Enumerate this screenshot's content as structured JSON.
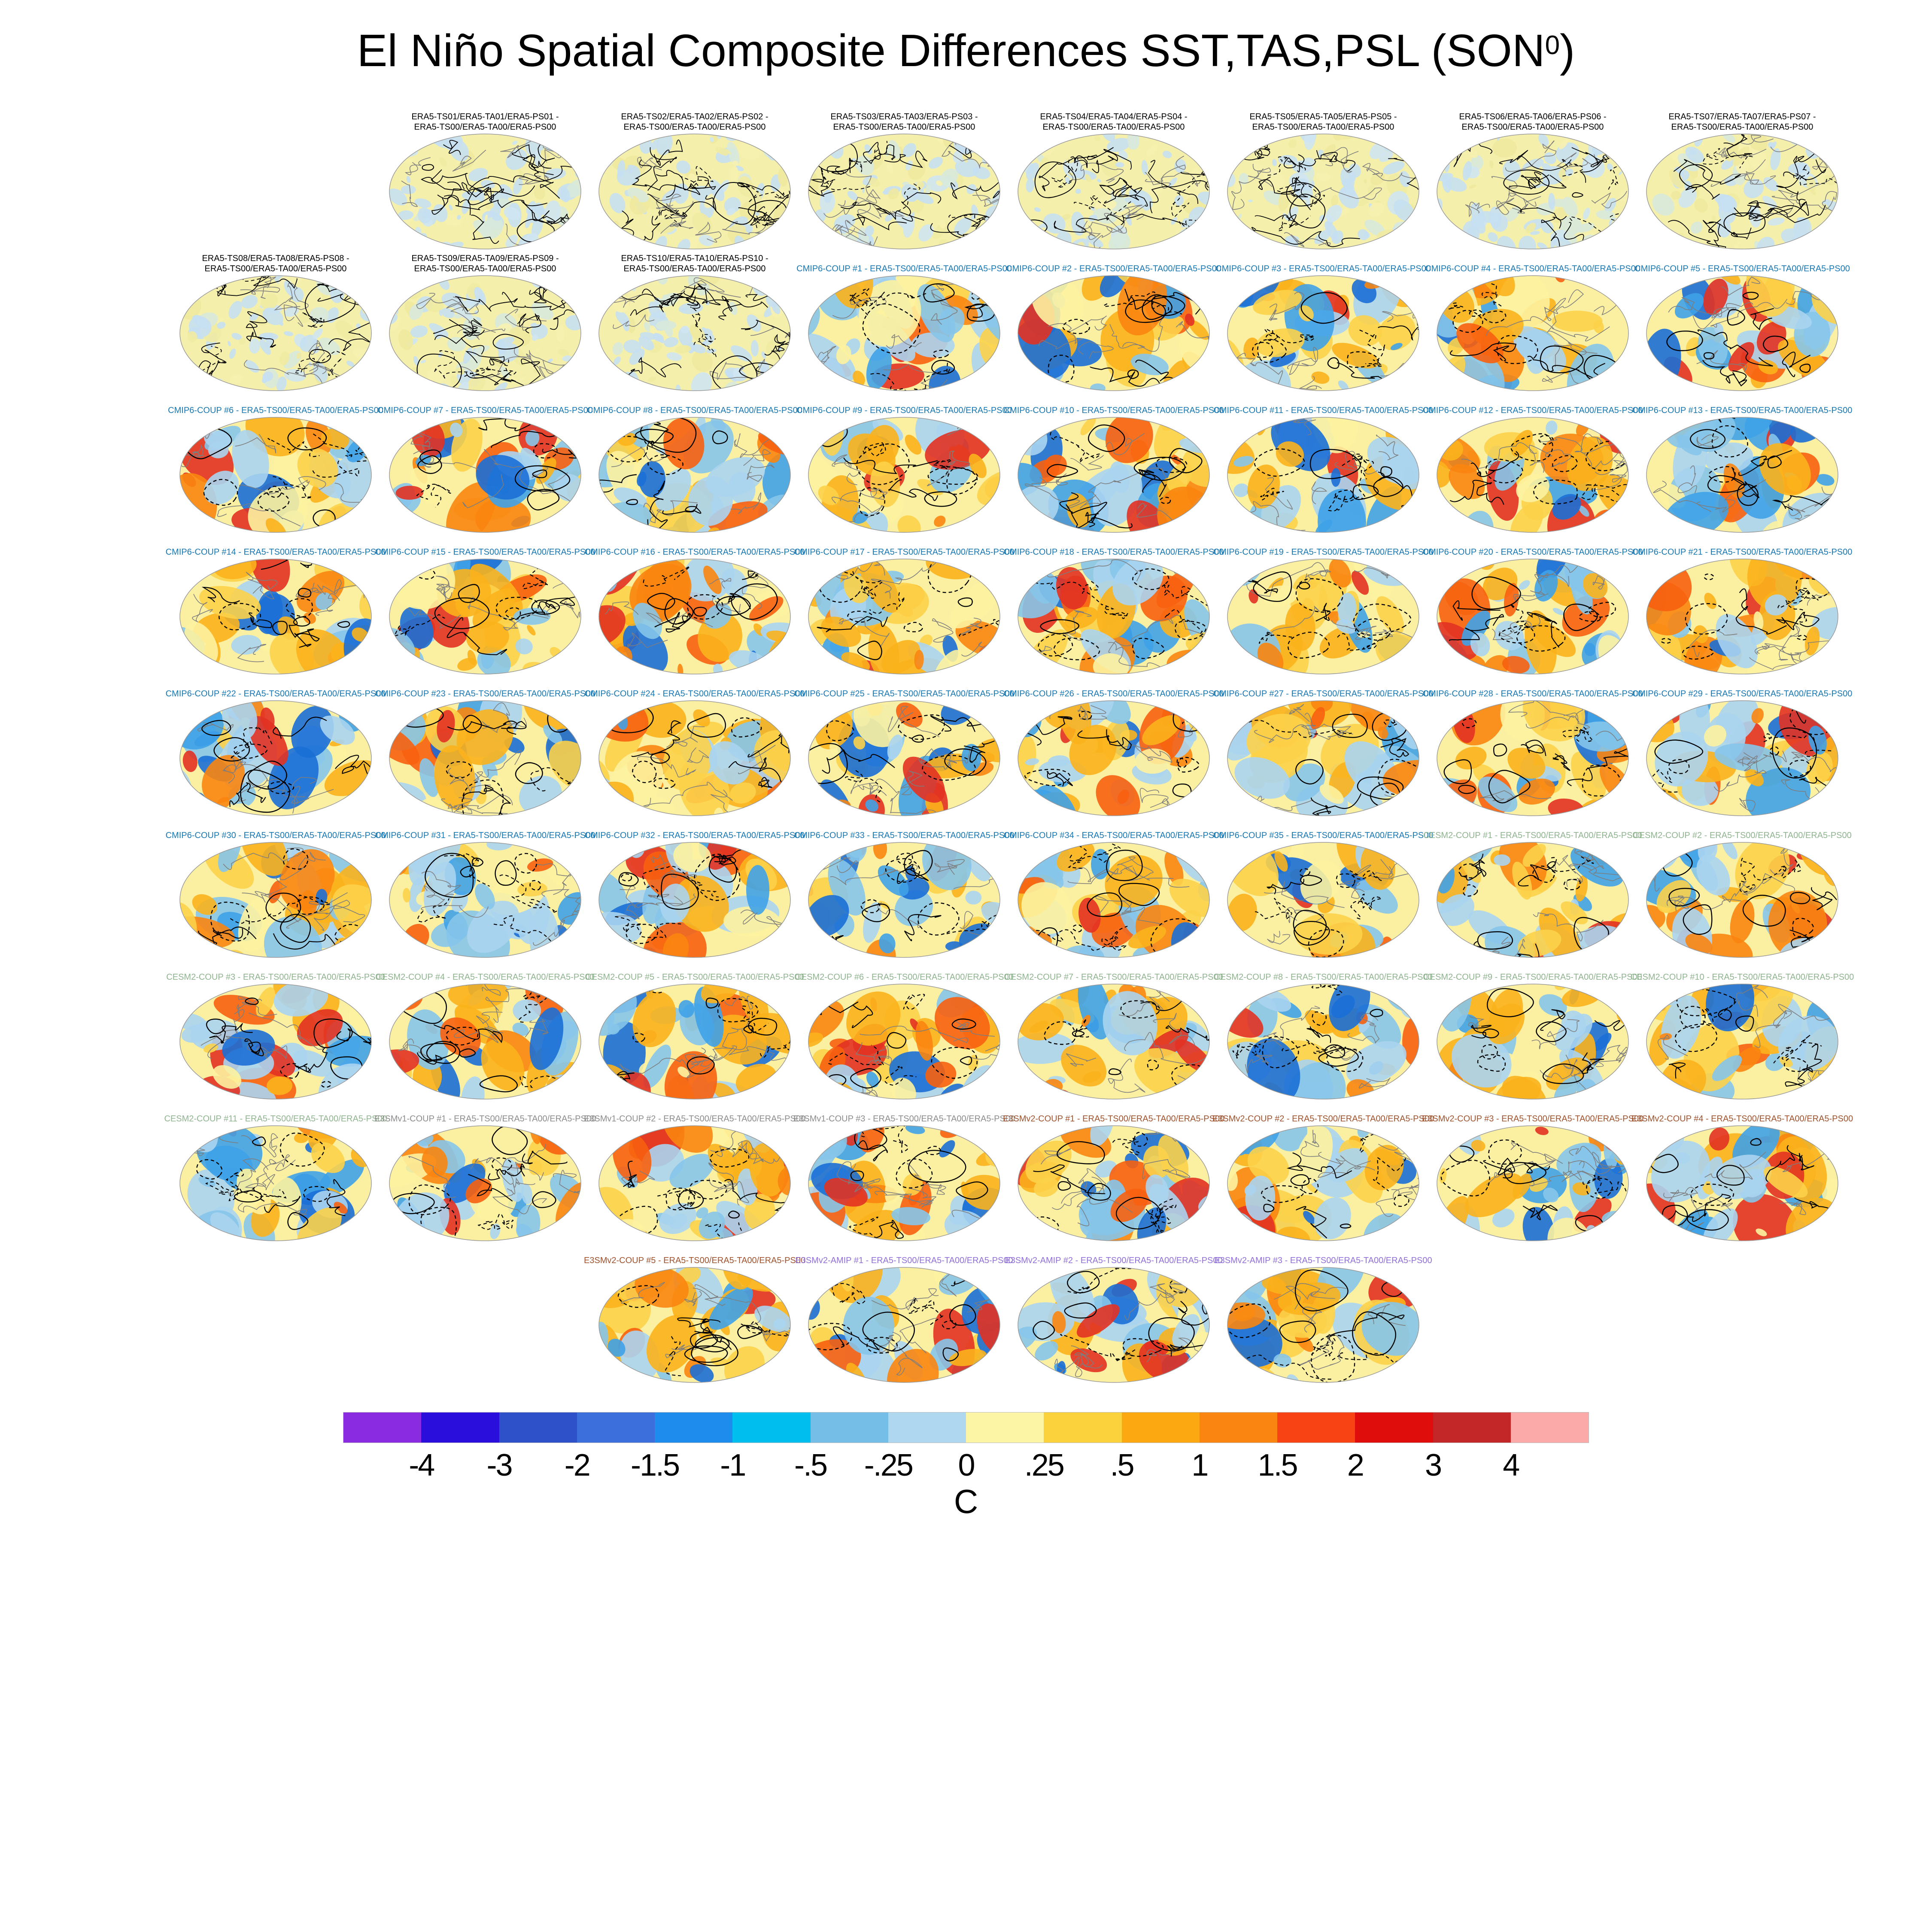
{
  "figure": {
    "background": "#ffffff"
  },
  "title": {
    "pre": "El Niño Spatial Composite Differences SST,TAS,PSL (SON",
    "sup": "0",
    "post": ")"
  },
  "groups": {
    "era5": {
      "color": "#000000",
      "map_style": "pale"
    },
    "cmip6": {
      "color": "#1878B4",
      "map_style": "vivid"
    },
    "cesm2": {
      "color": "#8FB48F",
      "map_style": "vivid"
    },
    "e3smv1": {
      "color": "#8C8C8C",
      "map_style": "vivid"
    },
    "e3smv2_coup": {
      "color": "#A0522D",
      "map_style": "vivid"
    },
    "e3smv2_amip": {
      "color": "#9070D8",
      "map_style": "vivid"
    }
  },
  "chart_data": {
    "type": "heatmap",
    "title": "El Niño Spatial Composite Differences SST,TAS,PSL (SON0)",
    "panel_kind": "global anomaly map with overlaid contours",
    "colorbar": {
      "unit": "C",
      "tick_labels": [
        "-4",
        "-3",
        "-2",
        "-1.5",
        "-1",
        "-.5",
        "-.25",
        "0",
        ".25",
        ".5",
        "1",
        "1.5",
        "2",
        "3",
        "4"
      ],
      "colors": [
        "#8A2BE2",
        "#2A0EDB",
        "#2E50C8",
        "#3C6EDC",
        "#1E8CEC",
        "#00BFEF",
        "#74BEE8",
        "#AFD7EF",
        "#FDF5A6",
        "#FBD23C",
        "#FCA811",
        "#FA8510",
        "#F84414",
        "#E00D0D",
        "#C32727",
        "#FCA9A9"
      ]
    },
    "rows": [
      {
        "offset_cols": 1,
        "centered": false,
        "panels": [
          {
            "g": "era5",
            "lines": [
              "ERA5-TS01/ERA5-TA01/ERA5-PS01 -",
              "ERA5-TS00/ERA5-TA00/ERA5-PS00"
            ]
          },
          {
            "g": "era5",
            "lines": [
              "ERA5-TS02/ERA5-TA02/ERA5-PS02 -",
              "ERA5-TS00/ERA5-TA00/ERA5-PS00"
            ]
          },
          {
            "g": "era5",
            "lines": [
              "ERA5-TS03/ERA5-TA03/ERA5-PS03 -",
              "ERA5-TS00/ERA5-TA00/ERA5-PS00"
            ]
          },
          {
            "g": "era5",
            "lines": [
              "ERA5-TS04/ERA5-TA04/ERA5-PS04 -",
              "ERA5-TS00/ERA5-TA00/ERA5-PS00"
            ]
          },
          {
            "g": "era5",
            "lines": [
              "ERA5-TS05/ERA5-TA05/ERA5-PS05 -",
              "ERA5-TS00/ERA5-TA00/ERA5-PS00"
            ]
          },
          {
            "g": "era5",
            "lines": [
              "ERA5-TS06/ERA5-TA06/ERA5-PS06 -",
              "ERA5-TS00/ERA5-TA00/ERA5-PS00"
            ]
          },
          {
            "g": "era5",
            "lines": [
              "ERA5-TS07/ERA5-TA07/ERA5-PS07 -",
              "ERA5-TS00/ERA5-TA00/ERA5-PS00"
            ]
          }
        ]
      },
      {
        "offset_cols": 0,
        "centered": false,
        "panels": [
          {
            "g": "era5",
            "lines": [
              "ERA5-TS08/ERA5-TA08/ERA5-PS08 -",
              "ERA5-TS00/ERA5-TA00/ERA5-PS00"
            ]
          },
          {
            "g": "era5",
            "lines": [
              "ERA5-TS09/ERA5-TA09/ERA5-PS09 -",
              "ERA5-TS00/ERA5-TA00/ERA5-PS00"
            ]
          },
          {
            "g": "era5",
            "lines": [
              "ERA5-TS10/ERA5-TA10/ERA5-PS10 -",
              "ERA5-TS00/ERA5-TA00/ERA5-PS00"
            ]
          },
          {
            "g": "cmip6",
            "lines": [
              "CMIP6-COUP  #1 - ERA5-TS00/ERA5-TA00/ERA5-PS00"
            ]
          },
          {
            "g": "cmip6",
            "lines": [
              "CMIP6-COUP  #2 - ERA5-TS00/ERA5-TA00/ERA5-PS00"
            ]
          },
          {
            "g": "cmip6",
            "lines": [
              "CMIP6-COUP  #3 - ERA5-TS00/ERA5-TA00/ERA5-PS00"
            ]
          },
          {
            "g": "cmip6",
            "lines": [
              "CMIP6-COUP  #4 - ERA5-TS00/ERA5-TA00/ERA5-PS00"
            ]
          },
          {
            "g": "cmip6",
            "lines": [
              "CMIP6-COUP  #5 - ERA5-TS00/ERA5-TA00/ERA5-PS00"
            ]
          }
        ]
      },
      {
        "offset_cols": 0,
        "centered": false,
        "panels": [
          {
            "g": "cmip6",
            "lines": [
              "CMIP6-COUP  #6 - ERA5-TS00/ERA5-TA00/ERA5-PS00"
            ]
          },
          {
            "g": "cmip6",
            "lines": [
              "CMIP6-COUP  #7 - ERA5-TS00/ERA5-TA00/ERA5-PS00"
            ]
          },
          {
            "g": "cmip6",
            "lines": [
              "CMIP6-COUP  #8 - ERA5-TS00/ERA5-TA00/ERA5-PS00"
            ]
          },
          {
            "g": "cmip6",
            "lines": [
              "CMIP6-COUP  #9 - ERA5-TS00/ERA5-TA00/ERA5-PS00"
            ]
          },
          {
            "g": "cmip6",
            "lines": [
              "CMIP6-COUP  #10 - ERA5-TS00/ERA5-TA00/ERA5-PS00"
            ]
          },
          {
            "g": "cmip6",
            "lines": [
              "CMIP6-COUP  #11 - ERA5-TS00/ERA5-TA00/ERA5-PS00"
            ]
          },
          {
            "g": "cmip6",
            "lines": [
              "CMIP6-COUP  #12 - ERA5-TS00/ERA5-TA00/ERA5-PS00"
            ]
          },
          {
            "g": "cmip6",
            "lines": [
              "CMIP6-COUP  #13 - ERA5-TS00/ERA5-TA00/ERA5-PS00"
            ]
          }
        ]
      },
      {
        "offset_cols": 0,
        "centered": false,
        "panels": [
          {
            "g": "cmip6",
            "lines": [
              "CMIP6-COUP  #14 - ERA5-TS00/ERA5-TA00/ERA5-PS00"
            ]
          },
          {
            "g": "cmip6",
            "lines": [
              "CMIP6-COUP  #15 - ERA5-TS00/ERA5-TA00/ERA5-PS00"
            ]
          },
          {
            "g": "cmip6",
            "lines": [
              "CMIP6-COUP  #16 - ERA5-TS00/ERA5-TA00/ERA5-PS00"
            ]
          },
          {
            "g": "cmip6",
            "lines": [
              "CMIP6-COUP  #17 - ERA5-TS00/ERA5-TA00/ERA5-PS00"
            ]
          },
          {
            "g": "cmip6",
            "lines": [
              "CMIP6-COUP  #18 - ERA5-TS00/ERA5-TA00/ERA5-PS00"
            ]
          },
          {
            "g": "cmip6",
            "lines": [
              "CMIP6-COUP  #19 - ERA5-TS00/ERA5-TA00/ERA5-PS00"
            ]
          },
          {
            "g": "cmip6",
            "lines": [
              "CMIP6-COUP  #20 - ERA5-TS00/ERA5-TA00/ERA5-PS00"
            ]
          },
          {
            "g": "cmip6",
            "lines": [
              "CMIP6-COUP  #21 - ERA5-TS00/ERA5-TA00/ERA5-PS00"
            ]
          }
        ]
      },
      {
        "offset_cols": 0,
        "centered": false,
        "panels": [
          {
            "g": "cmip6",
            "lines": [
              "CMIP6-COUP  #22 - ERA5-TS00/ERA5-TA00/ERA5-PS00"
            ]
          },
          {
            "g": "cmip6",
            "lines": [
              "CMIP6-COUP  #23 - ERA5-TS00/ERA5-TA00/ERA5-PS00"
            ]
          },
          {
            "g": "cmip6",
            "lines": [
              "CMIP6-COUP  #24 - ERA5-TS00/ERA5-TA00/ERA5-PS00"
            ]
          },
          {
            "g": "cmip6",
            "lines": [
              "CMIP6-COUP  #25 - ERA5-TS00/ERA5-TA00/ERA5-PS00"
            ]
          },
          {
            "g": "cmip6",
            "lines": [
              "CMIP6-COUP  #26 - ERA5-TS00/ERA5-TA00/ERA5-PS00"
            ]
          },
          {
            "g": "cmip6",
            "lines": [
              "CMIP6-COUP  #27 - ERA5-TS00/ERA5-TA00/ERA5-PS00"
            ]
          },
          {
            "g": "cmip6",
            "lines": [
              "CMIP6-COUP  #28 - ERA5-TS00/ERA5-TA00/ERA5-PS00"
            ]
          },
          {
            "g": "cmip6",
            "lines": [
              "CMIP6-COUP  #29 - ERA5-TS00/ERA5-TA00/ERA5-PS00"
            ]
          }
        ]
      },
      {
        "offset_cols": 0,
        "centered": false,
        "panels": [
          {
            "g": "cmip6",
            "lines": [
              "CMIP6-COUP  #30 - ERA5-TS00/ERA5-TA00/ERA5-PS00"
            ]
          },
          {
            "g": "cmip6",
            "lines": [
              "CMIP6-COUP  #31 - ERA5-TS00/ERA5-TA00/ERA5-PS00"
            ]
          },
          {
            "g": "cmip6",
            "lines": [
              "CMIP6-COUP  #32 - ERA5-TS00/ERA5-TA00/ERA5-PS00"
            ]
          },
          {
            "g": "cmip6",
            "lines": [
              "CMIP6-COUP  #33 - ERA5-TS00/ERA5-TA00/ERA5-PS00"
            ]
          },
          {
            "g": "cmip6",
            "lines": [
              "CMIP6-COUP  #34 - ERA5-TS00/ERA5-TA00/ERA5-PS00"
            ]
          },
          {
            "g": "cmip6",
            "lines": [
              "CMIP6-COUP  #35 - ERA5-TS00/ERA5-TA00/ERA5-PS00"
            ]
          },
          {
            "g": "cesm2",
            "lines": [
              "CESM2-COUP  #1 - ERA5-TS00/ERA5-TA00/ERA5-PS00"
            ]
          },
          {
            "g": "cesm2",
            "lines": [
              "CESM2-COUP  #2 - ERA5-TS00/ERA5-TA00/ERA5-PS00"
            ]
          }
        ]
      },
      {
        "offset_cols": 0,
        "centered": false,
        "panels": [
          {
            "g": "cesm2",
            "lines": [
              "CESM2-COUP  #3 - ERA5-TS00/ERA5-TA00/ERA5-PS00"
            ]
          },
          {
            "g": "cesm2",
            "lines": [
              "CESM2-COUP  #4 - ERA5-TS00/ERA5-TA00/ERA5-PS00"
            ]
          },
          {
            "g": "cesm2",
            "lines": [
              "CESM2-COUP  #5 - ERA5-TS00/ERA5-TA00/ERA5-PS00"
            ]
          },
          {
            "g": "cesm2",
            "lines": [
              "CESM2-COUP  #6 - ERA5-TS00/ERA5-TA00/ERA5-PS00"
            ]
          },
          {
            "g": "cesm2",
            "lines": [
              "CESM2-COUP  #7 - ERA5-TS00/ERA5-TA00/ERA5-PS00"
            ]
          },
          {
            "g": "cesm2",
            "lines": [
              "CESM2-COUP  #8 - ERA5-TS00/ERA5-TA00/ERA5-PS00"
            ]
          },
          {
            "g": "cesm2",
            "lines": [
              "CESM2-COUP  #9 - ERA5-TS00/ERA5-TA00/ERA5-PS00"
            ]
          },
          {
            "g": "cesm2",
            "lines": [
              "CESM2-COUP  #10 - ERA5-TS00/ERA5-TA00/ERA5-PS00"
            ]
          }
        ]
      },
      {
        "offset_cols": 0,
        "centered": false,
        "panels": [
          {
            "g": "cesm2",
            "lines": [
              "CESM2-COUP  #11 - ERA5-TS00/ERA5-TA00/ERA5-PS00"
            ]
          },
          {
            "g": "e3smv1",
            "lines": [
              "E3SMv1-COUP #1 - ERA5-TS00/ERA5-TA00/ERA5-PS00"
            ]
          },
          {
            "g": "e3smv1",
            "lines": [
              "E3SMv1-COUP #2 - ERA5-TS00/ERA5-TA00/ERA5-PS00"
            ]
          },
          {
            "g": "e3smv1",
            "lines": [
              "E3SMv1-COUP #3 - ERA5-TS00/ERA5-TA00/ERA5-PS00"
            ]
          },
          {
            "g": "e3smv2_coup",
            "lines": [
              "E3SMv2-COUP #1 - ERA5-TS00/ERA5-TA00/ERA5-PS00"
            ]
          },
          {
            "g": "e3smv2_coup",
            "lines": [
              "E3SMv2-COUP #2 - ERA5-TS00/ERA5-TA00/ERA5-PS00"
            ]
          },
          {
            "g": "e3smv2_coup",
            "lines": [
              "E3SMv2-COUP #3 - ERA5-TS00/ERA5-TA00/ERA5-PS00"
            ]
          },
          {
            "g": "e3smv2_coup",
            "lines": [
              "E3SMv2-COUP #4 - ERA5-TS00/ERA5-TA00/ERA5-PS00"
            ]
          }
        ]
      },
      {
        "offset_cols": 0,
        "centered": true,
        "panels": [
          {
            "g": "e3smv2_coup",
            "lines": [
              "E3SMv2-COUP #5 - ERA5-TS00/ERA5-TA00/ERA5-PS00"
            ]
          },
          {
            "g": "e3smv2_amip",
            "lines": [
              "E3SMv2-AMIP #1 - ERA5-TS00/ERA5-TA00/ERA5-PS00"
            ]
          },
          {
            "g": "e3smv2_amip",
            "lines": [
              "E3SMv2-AMIP #2 - ERA5-TS00/ERA5-TA00/ERA5-PS00"
            ]
          },
          {
            "g": "e3smv2_amip",
            "lines": [
              "E3SMv2-AMIP #3 - ERA5-TS00/ERA5-TA00/ERA5-PS00"
            ]
          }
        ]
      }
    ]
  }
}
